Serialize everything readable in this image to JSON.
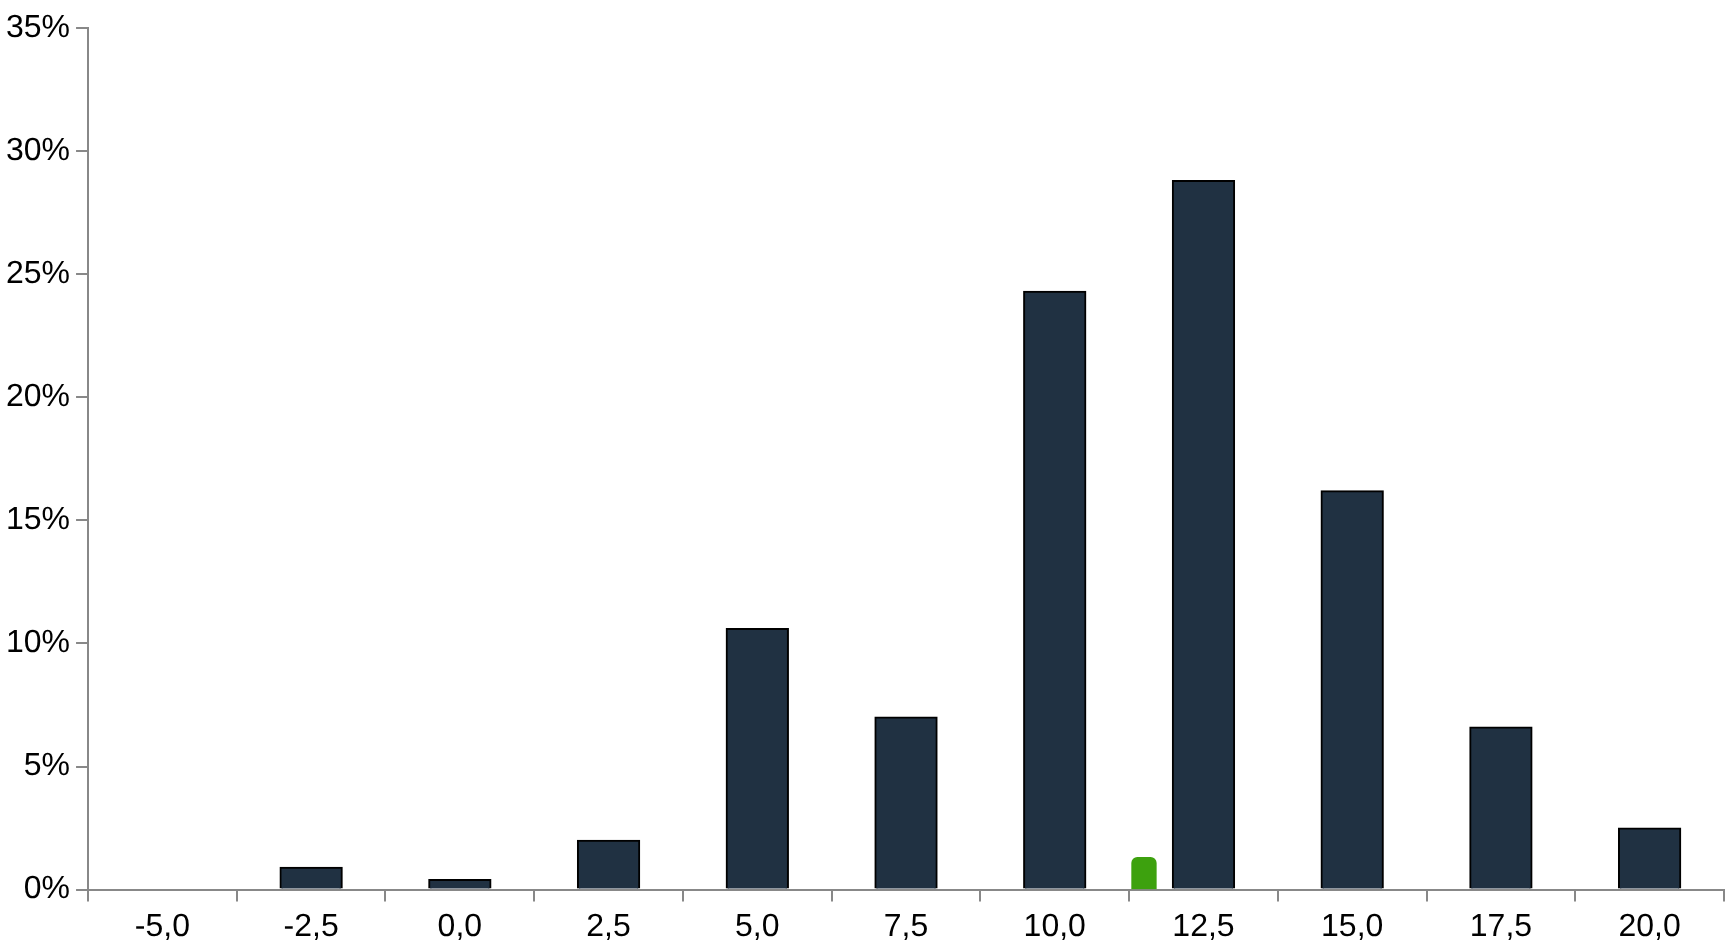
{
  "chart_data": {
    "type": "bar",
    "xlim": [
      -6.25,
      21.25
    ],
    "xticks": [
      {
        "value": -5,
        "label": "-5,0"
      },
      {
        "value": -2.5,
        "label": "-2,5"
      },
      {
        "value": 0,
        "label": "0,0"
      },
      {
        "value": 2.5,
        "label": "2,5"
      },
      {
        "value": 5,
        "label": "5,0"
      },
      {
        "value": 7.5,
        "label": "7,5"
      },
      {
        "value": 10,
        "label": "10,0"
      },
      {
        "value": 12.5,
        "label": "12,5"
      },
      {
        "value": 15,
        "label": "15,0"
      },
      {
        "value": 17.5,
        "label": "17,5"
      },
      {
        "value": 20,
        "label": "20,0"
      }
    ],
    "ylim": [
      0,
      35
    ],
    "yticks": [
      {
        "value": 0,
        "label": "0%"
      },
      {
        "value": 5,
        "label": "5%"
      },
      {
        "value": 10,
        "label": "10%"
      },
      {
        "value": 15,
        "label": "15%"
      },
      {
        "value": 20,
        "label": "20%"
      },
      {
        "value": 25,
        "label": "25%"
      },
      {
        "value": 30,
        "label": "30%"
      },
      {
        "value": 35,
        "label": "35%"
      }
    ],
    "grid": false,
    "legend": false,
    "series": [
      {
        "color": "#203142",
        "x": [
          -5,
          -2.5,
          0,
          2.5,
          5,
          7.5,
          10,
          12.5,
          15,
          17.5,
          20
        ],
        "values": [
          0,
          0.9,
          0.4,
          2.0,
          10.6,
          7.0,
          24.3,
          28.8,
          16.2,
          6.6,
          2.5
        ]
      },
      {
        "color": "#3da10e",
        "x": [
          11.5
        ],
        "values": [
          1.3
        ]
      }
    ]
  }
}
